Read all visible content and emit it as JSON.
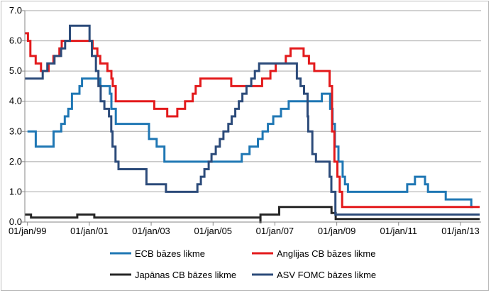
{
  "chart_data": {
    "type": "line",
    "ylim": [
      0,
      7
    ],
    "y_ticks": [
      "0.0",
      "1.0",
      "2.0",
      "3.0",
      "4.0",
      "5.0",
      "6.0",
      "7.0"
    ],
    "x_range": [
      "1998-12-01",
      "2013-09-01"
    ],
    "x_ticks": [
      {
        "date": "1999-01-01",
        "label": "01/jan/99"
      },
      {
        "date": "2001-01-01",
        "label": "01/jan/01"
      },
      {
        "date": "2003-01-01",
        "label": "01/jan/03"
      },
      {
        "date": "2005-01-01",
        "label": "01/jan/05"
      },
      {
        "date": "2007-01-01",
        "label": "01/jan/07"
      },
      {
        "date": "2009-01-01",
        "label": "01/jan/09"
      },
      {
        "date": "2011-01-01",
        "label": "01/jan/11"
      },
      {
        "date": "2013-01-01",
        "label": "01/jan/13"
      }
    ],
    "grid": "horizontal",
    "legend_position": "bottom",
    "series": [
      {
        "name": "ECB bāzes likme",
        "color": "#1f77b4",
        "points": [
          [
            "1999-01-01",
            3.0
          ],
          [
            "1999-04-09",
            2.5
          ],
          [
            "1999-11-05",
            3.0
          ],
          [
            "2000-02-04",
            3.25
          ],
          [
            "2000-03-17",
            3.5
          ],
          [
            "2000-04-28",
            3.75
          ],
          [
            "2000-06-09",
            4.25
          ],
          [
            "2000-09-06",
            4.5
          ],
          [
            "2000-10-06",
            4.75
          ],
          [
            "2001-05-11",
            4.5
          ],
          [
            "2001-08-31",
            4.25
          ],
          [
            "2001-09-18",
            3.75
          ],
          [
            "2001-11-09",
            3.25
          ],
          [
            "2002-12-06",
            2.75
          ],
          [
            "2003-03-07",
            2.5
          ],
          [
            "2003-06-06",
            2.0
          ],
          [
            "2005-12-06",
            2.25
          ],
          [
            "2006-03-08",
            2.5
          ],
          [
            "2006-06-15",
            2.75
          ],
          [
            "2006-08-09",
            3.0
          ],
          [
            "2006-10-11",
            3.25
          ],
          [
            "2006-12-13",
            3.5
          ],
          [
            "2007-03-14",
            3.75
          ],
          [
            "2007-06-13",
            4.0
          ],
          [
            "2008-07-09",
            4.25
          ],
          [
            "2008-10-15",
            3.75
          ],
          [
            "2008-11-12",
            3.25
          ],
          [
            "2008-12-10",
            2.5
          ],
          [
            "2009-01-21",
            2.0
          ],
          [
            "2009-03-11",
            1.5
          ],
          [
            "2009-04-08",
            1.25
          ],
          [
            "2009-05-13",
            1.0
          ],
          [
            "2011-04-13",
            1.25
          ],
          [
            "2011-07-13",
            1.5
          ],
          [
            "2011-11-09",
            1.25
          ],
          [
            "2011-12-14",
            1.0
          ],
          [
            "2012-07-11",
            0.75
          ],
          [
            "2013-05-08",
            0.5
          ],
          [
            "2013-05-31",
            0.5
          ]
        ]
      },
      {
        "name": "Anglijas CB bāzes likme",
        "color": "#e31a1c",
        "points": [
          [
            "1998-12-01",
            6.25
          ],
          [
            "1999-01-07",
            6.0
          ],
          [
            "1999-02-04",
            5.5
          ],
          [
            "1999-04-08",
            5.25
          ],
          [
            "1999-06-10",
            5.0
          ],
          [
            "1999-09-08",
            5.25
          ],
          [
            "1999-11-04",
            5.5
          ],
          [
            "2000-01-13",
            5.75
          ],
          [
            "2000-02-10",
            6.0
          ],
          [
            "2001-02-08",
            5.75
          ],
          [
            "2001-04-05",
            5.5
          ],
          [
            "2001-05-10",
            5.25
          ],
          [
            "2001-08-02",
            5.0
          ],
          [
            "2001-09-18",
            4.75
          ],
          [
            "2001-10-04",
            4.5
          ],
          [
            "2001-11-08",
            4.0
          ],
          [
            "2003-02-06",
            3.75
          ],
          [
            "2003-07-10",
            3.5
          ],
          [
            "2003-11-06",
            3.75
          ],
          [
            "2004-02-05",
            4.0
          ],
          [
            "2004-05-06",
            4.25
          ],
          [
            "2004-06-10",
            4.5
          ],
          [
            "2004-08-05",
            4.75
          ],
          [
            "2005-08-04",
            4.5
          ],
          [
            "2006-08-03",
            4.75
          ],
          [
            "2006-11-09",
            5.0
          ],
          [
            "2007-01-11",
            5.25
          ],
          [
            "2007-05-10",
            5.5
          ],
          [
            "2007-07-05",
            5.75
          ],
          [
            "2007-12-06",
            5.5
          ],
          [
            "2008-02-07",
            5.25
          ],
          [
            "2008-04-10",
            5.0
          ],
          [
            "2008-10-08",
            4.5
          ],
          [
            "2008-11-06",
            3.0
          ],
          [
            "2008-12-04",
            2.0
          ],
          [
            "2009-01-08",
            1.5
          ],
          [
            "2009-02-05",
            1.0
          ],
          [
            "2009-03-05",
            0.5
          ],
          [
            "2013-08-15",
            0.5
          ]
        ]
      },
      {
        "name": "Japānas CB bāzes likme",
        "color": "#262626",
        "points": [
          [
            "1998-12-01",
            0.25
          ],
          [
            "1999-02-12",
            0.15
          ],
          [
            "2000-08-11",
            0.25
          ],
          [
            "2001-02-28",
            0.15
          ],
          [
            "2006-07-14",
            0.0
          ],
          [
            "2006-07-15",
            0.25
          ],
          [
            "2007-02-21",
            0.5
          ],
          [
            "2008-10-31",
            0.3
          ],
          [
            "2008-12-19",
            0.1
          ],
          [
            "2013-08-15",
            0.1
          ]
        ]
      },
      {
        "name": "ASV FOMC bāzes likme",
        "color": "#2c4b7a",
        "points": [
          [
            "1998-12-01",
            4.75
          ],
          [
            "1999-06-30",
            5.0
          ],
          [
            "1999-08-24",
            5.25
          ],
          [
            "1999-11-16",
            5.5
          ],
          [
            "2000-02-02",
            5.75
          ],
          [
            "2000-03-21",
            6.0
          ],
          [
            "2000-05-16",
            6.5
          ],
          [
            "2001-01-03",
            6.0
          ],
          [
            "2001-01-31",
            5.5
          ],
          [
            "2001-03-20",
            5.0
          ],
          [
            "2001-04-18",
            4.5
          ],
          [
            "2001-05-15",
            4.0
          ],
          [
            "2001-06-27",
            3.75
          ],
          [
            "2001-08-21",
            3.5
          ],
          [
            "2001-09-17",
            3.0
          ],
          [
            "2001-10-02",
            2.5
          ],
          [
            "2001-11-06",
            2.0
          ],
          [
            "2001-12-11",
            1.75
          ],
          [
            "2002-11-06",
            1.25
          ],
          [
            "2003-06-25",
            1.0
          ],
          [
            "2004-06-30",
            1.25
          ],
          [
            "2004-08-10",
            1.5
          ],
          [
            "2004-09-21",
            1.75
          ],
          [
            "2004-11-10",
            2.0
          ],
          [
            "2004-12-14",
            2.25
          ],
          [
            "2005-02-02",
            2.5
          ],
          [
            "2005-03-22",
            2.75
          ],
          [
            "2005-05-03",
            3.0
          ],
          [
            "2005-06-30",
            3.25
          ],
          [
            "2005-08-09",
            3.5
          ],
          [
            "2005-09-20",
            3.75
          ],
          [
            "2005-11-01",
            4.0
          ],
          [
            "2005-12-13",
            4.25
          ],
          [
            "2006-01-31",
            4.5
          ],
          [
            "2006-03-28",
            4.75
          ],
          [
            "2006-05-10",
            5.0
          ],
          [
            "2006-06-29",
            5.25
          ],
          [
            "2007-09-18",
            4.75
          ],
          [
            "2007-10-31",
            4.5
          ],
          [
            "2007-12-11",
            4.25
          ],
          [
            "2008-01-22",
            3.5
          ],
          [
            "2008-01-30",
            3.0
          ],
          [
            "2008-03-18",
            2.25
          ],
          [
            "2008-04-30",
            2.0
          ],
          [
            "2008-10-08",
            1.5
          ],
          [
            "2008-10-29",
            1.0
          ],
          [
            "2008-12-16",
            0.25
          ],
          [
            "2013-08-15",
            0.25
          ]
        ]
      }
    ]
  }
}
